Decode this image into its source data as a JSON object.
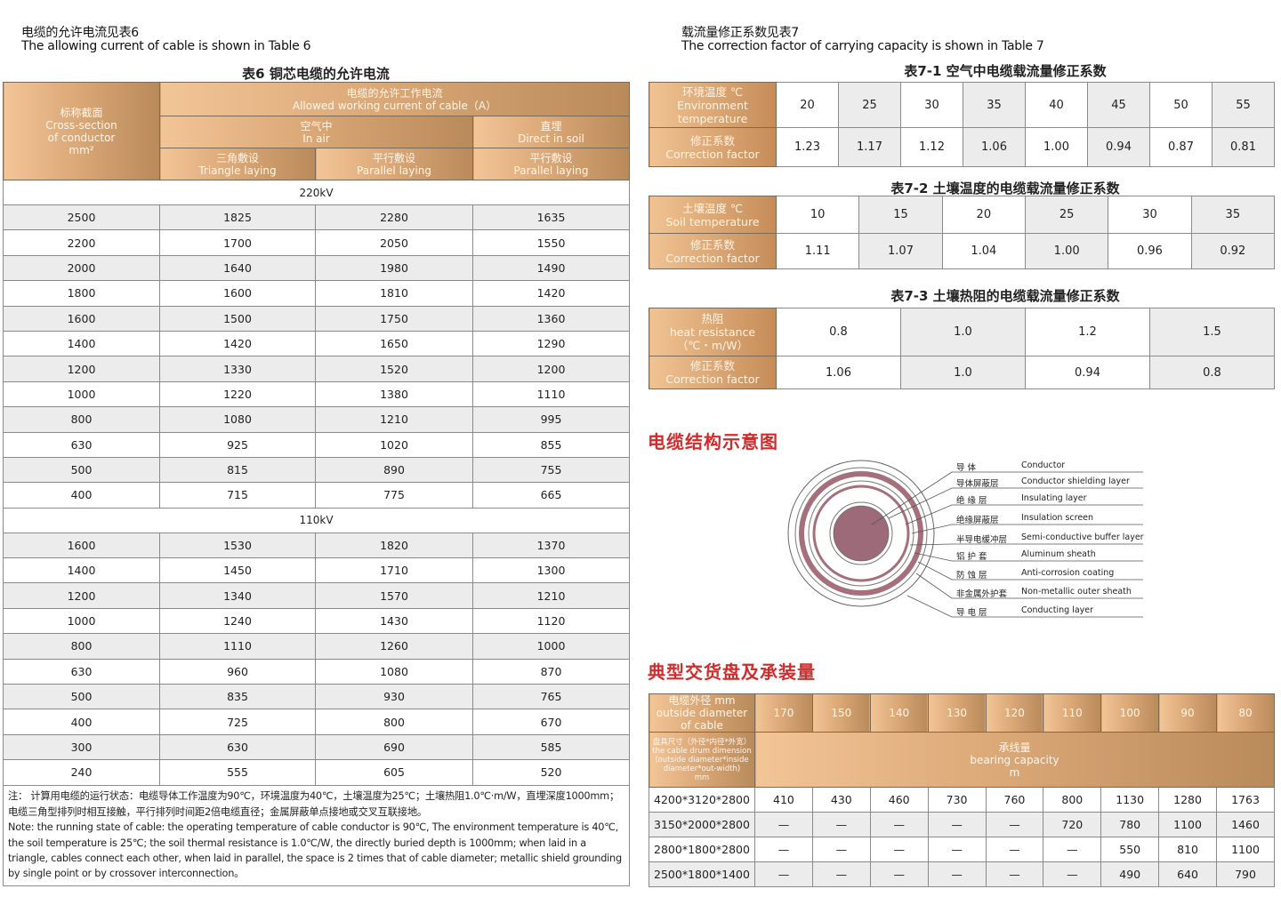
{
  "left": {
    "intro_cn": "电缆的允许电流见表6",
    "intro_en": "The allowing current of cable is shown in Table 6",
    "table_title": "表6  铜芯电缆的允许电流",
    "header": {
      "cross_section_cn": "标称截面",
      "cross_section_en": "Cross-section",
      "cross_section_en2": "of conductor",
      "cross_section_unit": "mm²",
      "allowed_cn": "电缆的允许工作电流",
      "allowed_en": "Allowed working current of cable（A）",
      "in_air_cn": "空气中",
      "in_air_en": "In air",
      "soil_cn": "直埋",
      "soil_en": "Direct in soil",
      "triangle_cn": "三角敷设",
      "triangle_en": "Triangle laying",
      "parallel_cn": "平行敷设",
      "parallel_en": "Parallel laying",
      "parallel2_cn": "平行敷设",
      "parallel2_en": "Parallel laying"
    },
    "groups": [
      {
        "voltage": "220kV",
        "rows": [
          [
            "2500",
            "1825",
            "2280",
            "1635"
          ],
          [
            "2200",
            "1700",
            "2050",
            "1550"
          ],
          [
            "2000",
            "1640",
            "1980",
            "1490"
          ],
          [
            "1800",
            "1600",
            "1810",
            "1420"
          ],
          [
            "1600",
            "1500",
            "1750",
            "1360"
          ],
          [
            "1400",
            "1420",
            "1650",
            "1290"
          ],
          [
            "1200",
            "1330",
            "1520",
            "1200"
          ],
          [
            "1000",
            "1220",
            "1380",
            "1110"
          ],
          [
            "800",
            "1080",
            "1210",
            "995"
          ],
          [
            "630",
            "925",
            "1020",
            "855"
          ],
          [
            "500",
            "815",
            "890",
            "755"
          ],
          [
            "400",
            "715",
            "775",
            "665"
          ]
        ]
      },
      {
        "voltage": "110kV",
        "rows": [
          [
            "1600",
            "1530",
            "1820",
            "1370"
          ],
          [
            "1400",
            "1450",
            "1710",
            "1300"
          ],
          [
            "1200",
            "1340",
            "1570",
            "1210"
          ],
          [
            "1000",
            "1240",
            "1430",
            "1120"
          ],
          [
            "800",
            "1110",
            "1260",
            "1000"
          ],
          [
            "630",
            "960",
            "1080",
            "870"
          ],
          [
            "500",
            "835",
            "930",
            "765"
          ],
          [
            "400",
            "725",
            "800",
            "670"
          ],
          [
            "300",
            "630",
            "690",
            "585"
          ],
          [
            "240",
            "555",
            "605",
            "520"
          ]
        ]
      }
    ],
    "note_cn": "注：   计算用电缆的运行状态：电缆导体工作温度为90℃，环境温度为40℃，土壤温度为25℃；土壤热阻1.0℃·m/W，直埋深度1000mm；电缆三角型排列时相互接触，平行排列时间距2倍电缆直径；金属屏蔽单点接地或交叉互联接地。",
    "note_en": "Note: the running state of cable: the operating temperature of cable conductor is 90℃, The environment temperature is 40℃, the soil temperature is 25℃; the soil thermal resistance is 1.0℃/W, the directly buried depth is 1000mm; when laid in a triangle, cables connect each other, when laid in parallel, the space is 2 times that of cable diameter; metallic shield grounding by single point or by crossover interconnection。"
  },
  "right": {
    "intro_cn": "载流量修正系数见表7",
    "intro_en": "The correction factor of carrying capacity is shown in Table 7",
    "t71": {
      "title": "表7-1  空气中电缆载流量修正系数",
      "row1_label": [
        "环境温度    ℃",
        "Environment",
        "temperature"
      ],
      "row2_label": [
        "修正系数",
        "Correction factor"
      ],
      "temps": [
        "20",
        "25",
        "30",
        "35",
        "40",
        "45",
        "50",
        "55"
      ],
      "factors": [
        "1.23",
        "1.17",
        "1.12",
        "1.06",
        "1.00",
        "0.94",
        "0.87",
        "0.81"
      ]
    },
    "t72": {
      "title": "表7-2  土壤温度的电缆载流量修正系数",
      "row1_label": [
        "土壤温度    ℃",
        "Soil temperature"
      ],
      "row2_label": [
        "修正系数",
        "Correction factor"
      ],
      "temps": [
        "10",
        "15",
        "20",
        "25",
        "30",
        "35"
      ],
      "factors": [
        "1.11",
        "1.07",
        "1.04",
        "1.00",
        "0.96",
        "0.92"
      ]
    },
    "t73": {
      "title": "表7-3  土壤热阻的电缆载流量修正系数",
      "row1_label": [
        "热阻",
        "heat resistance",
        "（℃・m/W）"
      ],
      "row2_label": [
        "修正系数",
        "Correction factor"
      ],
      "temps": [
        "0.8",
        "1.0",
        "1.2",
        "1.5"
      ],
      "factors": [
        "1.06",
        "1.0",
        "0.94",
        "0.8"
      ]
    },
    "structure": {
      "title": "电缆结构示意图",
      "layers": [
        {
          "cn": "导          体",
          "en": "Conductor"
        },
        {
          "cn": "导体屏蔽层",
          "en": "Conductor shielding layer"
        },
        {
          "cn": "绝     缘     层",
          "en": "Insulating layer"
        },
        {
          "cn": "绝缘屏蔽层",
          "en": "Insulation screen"
        },
        {
          "cn": "半导电缓冲层",
          "en": "Semi-conductive buffer layer"
        },
        {
          "cn": "铝     护     套",
          "en": "Aluminum sheath"
        },
        {
          "cn": "防     蚀     层",
          "en": "Anti-corrosion coating"
        },
        {
          "cn": "非金属外护套",
          "en": "Non-metallic outer sheath"
        },
        {
          "cn": "导     电     层",
          "en": "Conducting layer"
        }
      ],
      "colors": {
        "core": "#9c6a78",
        "band": "#a56f7c"
      }
    },
    "drum": {
      "title": "典型交货盘及承装量",
      "diam_label": [
        "电缆外径    mm",
        "outside diameter",
        "of cable"
      ],
      "diameters": [
        "170",
        "150",
        "140",
        "130",
        "120",
        "110",
        "100",
        "90",
        "80"
      ],
      "drum_label": [
        "盘具尺寸（外径*内径*外宽）",
        "the cable drum dimension",
        "(outside diameter*inside",
        "diameter*out-width)",
        "mm"
      ],
      "capacity_cn": "承线量",
      "capacity_en": "bearing capacity",
      "capacity_unit": "m",
      "rows": [
        {
          "drum": "4200*3120*2800",
          "values": [
            "410",
            "430",
            "460",
            "730",
            "760",
            "800",
            "1130",
            "1280",
            "1763"
          ]
        },
        {
          "drum": "3150*2000*2800",
          "values": [
            "—",
            "—",
            "—",
            "—",
            "—",
            "720",
            "780",
            "1100",
            "1460"
          ]
        },
        {
          "drum": "2800*1800*2800",
          "values": [
            "—",
            "—",
            "—",
            "—",
            "—",
            "—",
            "550",
            "810",
            "1100"
          ]
        },
        {
          "drum": "2500*1800*1400",
          "values": [
            "—",
            "—",
            "—",
            "—",
            "—",
            "—",
            "490",
            "640",
            "790"
          ]
        }
      ]
    }
  }
}
